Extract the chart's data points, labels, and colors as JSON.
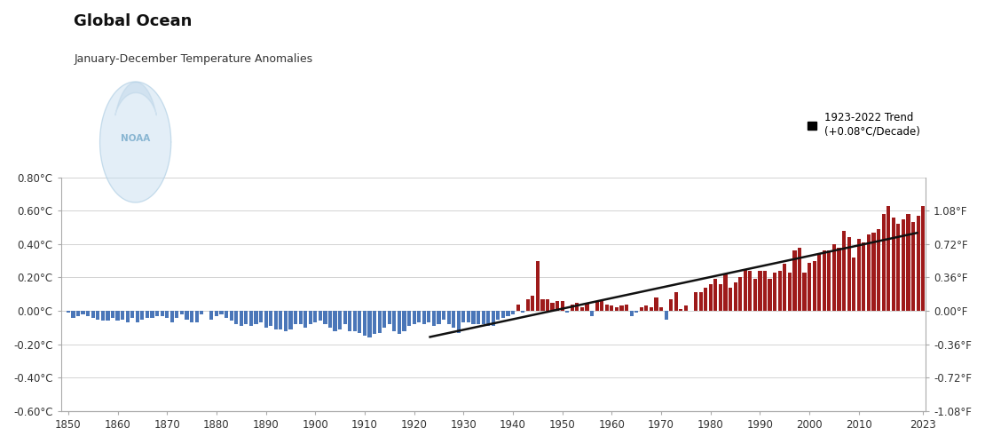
{
  "title": "Global Ocean",
  "subtitle": "January-December Temperature Anomalies",
  "ylim": [
    -0.6,
    0.8
  ],
  "yticks_c": [
    -0.6,
    -0.4,
    -0.2,
    0.0,
    0.2,
    0.4,
    0.6,
    0.8
  ],
  "yticks_f_vals": [
    -1.08,
    -0.72,
    -0.36,
    0.0,
    0.36,
    0.72,
    1.08
  ],
  "xlim": [
    1848.5,
    2023.5
  ],
  "xticks": [
    1850,
    1860,
    1870,
    1880,
    1890,
    1900,
    1910,
    1920,
    1930,
    1940,
    1950,
    1960,
    1970,
    1980,
    1990,
    2000,
    2010,
    2023
  ],
  "trend_label": "1923-2022 Trend\n(+0.08°C/Decade)",
  "trend_start_year": 1923,
  "trend_end_year": 2022,
  "bar_color_pos": "#9e1a1a",
  "bar_color_neg": "#4a76b8",
  "trend_line_color": "#111111",
  "background_color": "#ffffff",
  "grid_color": "#cccccc",
  "years": [
    1850,
    1851,
    1852,
    1853,
    1854,
    1855,
    1856,
    1857,
    1858,
    1859,
    1860,
    1861,
    1862,
    1863,
    1864,
    1865,
    1866,
    1867,
    1868,
    1869,
    1870,
    1871,
    1872,
    1873,
    1874,
    1875,
    1876,
    1877,
    1878,
    1879,
    1880,
    1881,
    1882,
    1883,
    1884,
    1885,
    1886,
    1887,
    1888,
    1889,
    1890,
    1891,
    1892,
    1893,
    1894,
    1895,
    1896,
    1897,
    1898,
    1899,
    1900,
    1901,
    1902,
    1903,
    1904,
    1905,
    1906,
    1907,
    1908,
    1909,
    1910,
    1911,
    1912,
    1913,
    1914,
    1915,
    1916,
    1917,
    1918,
    1919,
    1920,
    1921,
    1922,
    1923,
    1924,
    1925,
    1926,
    1927,
    1928,
    1929,
    1930,
    1931,
    1932,
    1933,
    1934,
    1935,
    1936,
    1937,
    1938,
    1939,
    1940,
    1941,
    1942,
    1943,
    1944,
    1945,
    1946,
    1947,
    1948,
    1949,
    1950,
    1951,
    1952,
    1953,
    1954,
    1955,
    1956,
    1957,
    1958,
    1959,
    1960,
    1961,
    1962,
    1963,
    1964,
    1965,
    1966,
    1967,
    1968,
    1969,
    1970,
    1971,
    1972,
    1973,
    1974,
    1975,
    1976,
    1977,
    1978,
    1979,
    1980,
    1981,
    1982,
    1983,
    1984,
    1985,
    1986,
    1987,
    1988,
    1989,
    1990,
    1991,
    1992,
    1993,
    1994,
    1995,
    1996,
    1997,
    1998,
    1999,
    2000,
    2001,
    2002,
    2003,
    2004,
    2005,
    2006,
    2007,
    2008,
    2009,
    2010,
    2011,
    2012,
    2013,
    2014,
    2015,
    2016,
    2017,
    2018,
    2019,
    2020,
    2021,
    2022,
    2023
  ],
  "anomalies": [
    -0.01,
    -0.04,
    -0.03,
    -0.02,
    -0.03,
    -0.04,
    -0.05,
    -0.06,
    -0.06,
    -0.04,
    -0.06,
    -0.05,
    -0.07,
    -0.04,
    -0.07,
    -0.05,
    -0.04,
    -0.04,
    -0.03,
    -0.03,
    -0.04,
    -0.07,
    -0.04,
    -0.02,
    -0.05,
    -0.07,
    -0.07,
    -0.02,
    0.0,
    -0.05,
    -0.03,
    -0.02,
    -0.04,
    -0.06,
    -0.08,
    -0.09,
    -0.08,
    -0.09,
    -0.08,
    -0.07,
    -0.1,
    -0.09,
    -0.11,
    -0.11,
    -0.12,
    -0.11,
    -0.08,
    -0.08,
    -0.1,
    -0.08,
    -0.07,
    -0.06,
    -0.08,
    -0.1,
    -0.12,
    -0.11,
    -0.08,
    -0.12,
    -0.12,
    -0.13,
    -0.15,
    -0.16,
    -0.14,
    -0.13,
    -0.1,
    -0.08,
    -0.12,
    -0.14,
    -0.12,
    -0.09,
    -0.08,
    -0.07,
    -0.08,
    -0.07,
    -0.09,
    -0.08,
    -0.05,
    -0.08,
    -0.1,
    -0.13,
    -0.07,
    -0.07,
    -0.08,
    -0.08,
    -0.08,
    -0.09,
    -0.09,
    -0.05,
    -0.04,
    -0.03,
    -0.02,
    0.04,
    -0.01,
    0.07,
    0.09,
    0.3,
    0.07,
    0.07,
    0.05,
    0.06,
    0.06,
    -0.01,
    0.04,
    0.05,
    0.02,
    0.05,
    -0.03,
    0.06,
    0.06,
    0.04,
    0.03,
    0.02,
    0.03,
    0.04,
    -0.03,
    -0.01,
    0.02,
    0.03,
    0.02,
    0.08,
    0.02,
    -0.05,
    0.07,
    0.11,
    0.01,
    0.03,
    0.0,
    0.11,
    0.11,
    0.14,
    0.16,
    0.19,
    0.16,
    0.22,
    0.14,
    0.17,
    0.2,
    0.25,
    0.24,
    0.19,
    0.24,
    0.24,
    0.19,
    0.23,
    0.24,
    0.28,
    0.23,
    0.36,
    0.38,
    0.23,
    0.29,
    0.3,
    0.34,
    0.36,
    0.36,
    0.4,
    0.38,
    0.48,
    0.44,
    0.32,
    0.43,
    0.41,
    0.46,
    0.47,
    0.49,
    0.58,
    0.63,
    0.56,
    0.52,
    0.55,
    0.58,
    0.53,
    0.57,
    0.63
  ]
}
